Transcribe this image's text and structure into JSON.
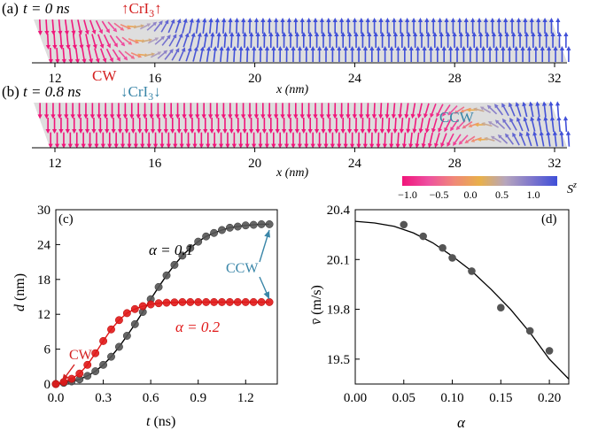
{
  "figure": {
    "colors": {
      "ann_red": "#d42020",
      "ann_teal": "#3a86a8",
      "band": "#dedede",
      "fit_line": "#000000"
    }
  },
  "chart_data": [
    {
      "type": "spin-texture",
      "panel_label": "(a)",
      "time_text": "t = 0 ns",
      "state_text": "↑CrI3↑",
      "state_color": "#d42020",
      "wall_label": "CW",
      "wall_label_color": "#d42020",
      "wall_center_nm": 14.9,
      "wall_width_nm": 1.1,
      "wall_chirality": "CW",
      "left_domain": "down (blue)",
      "x_ticks": [
        12,
        16,
        20,
        24,
        28,
        32
      ],
      "xlabel": "x (nm)",
      "xlim": [
        10.9,
        32.4
      ]
    },
    {
      "type": "spin-texture",
      "panel_label": "(b)",
      "time_text": "t = 0.8 ns",
      "state_text": "↓CrI3↓",
      "state_color": "#3a86a8",
      "wall_label": "CCW",
      "wall_label_color": "#3a86a8",
      "wall_center_nm": 28.8,
      "wall_width_nm": 1.1,
      "wall_chirality": "CCW",
      "left_domain": "down (blue)",
      "x_ticks": [
        12,
        16,
        20,
        24,
        28,
        32
      ],
      "xlabel": "x (nm)",
      "xlim": [
        10.9,
        32.4
      ],
      "colorbar": {
        "title": "Sz",
        "ticks": [
          "−1.0",
          "−0.5",
          "0.0",
          "0.5",
          "1.0"
        ],
        "range": [
          -1,
          1
        ],
        "colors": [
          "#f0157a",
          "#ee4fa0",
          "#f08878",
          "#e8b04a",
          "#b6a5bd",
          "#7f77cc",
          "#3f4fd8"
        ]
      }
    },
    {
      "type": "line",
      "panel_label": "(c)",
      "xlabel": "t (ns)",
      "ylabel": "d (nm)",
      "xlim": [
        0,
        1.4
      ],
      "ylim": [
        0,
        30
      ],
      "x_ticks": [
        "0.0",
        "0.3",
        "0.6",
        "0.9",
        "1.2"
      ],
      "y_ticks": [
        "0",
        "6",
        "12",
        "18",
        "24",
        "30"
      ],
      "series": [
        {
          "name": "α = 0.1",
          "color": "#555555",
          "x": [
            0,
            0.05,
            0.1,
            0.15,
            0.2,
            0.25,
            0.3,
            0.35,
            0.4,
            0.45,
            0.5,
            0.55,
            0.6,
            0.65,
            0.7,
            0.75,
            0.8,
            0.85,
            0.9,
            0.95,
            1.0,
            1.05,
            1.1,
            1.15,
            1.2,
            1.25,
            1.3,
            1.35
          ],
          "values": [
            0,
            0.2,
            0.45,
            0.8,
            1.4,
            2.2,
            3.3,
            4.7,
            6.4,
            8.3,
            10.3,
            12.4,
            14.6,
            16.7,
            18.7,
            20.5,
            22.1,
            23.4,
            24.5,
            25.4,
            26.0,
            26.5,
            26.9,
            27.1,
            27.3,
            27.4,
            27.5,
            27.5
          ]
        },
        {
          "name": "α = 0.2",
          "color": "#e01818",
          "x": [
            0,
            0.05,
            0.1,
            0.15,
            0.2,
            0.25,
            0.3,
            0.35,
            0.4,
            0.45,
            0.5,
            0.55,
            0.6,
            0.65,
            0.7,
            0.75,
            0.8,
            0.85,
            0.9,
            0.95,
            1.0,
            1.05,
            1.1,
            1.15,
            1.2,
            1.25,
            1.3,
            1.35
          ],
          "values": [
            0,
            0.35,
            0.9,
            1.8,
            3.3,
            5.3,
            7.4,
            9.4,
            11.0,
            12.2,
            12.9,
            13.4,
            13.7,
            13.9,
            14.0,
            14.05,
            14.1,
            14.1,
            14.1,
            14.1,
            14.1,
            14.1,
            14.1,
            14.1,
            14.1,
            14.1,
            14.1,
            14.1
          ]
        }
      ],
      "annotations": [
        {
          "text": "CW",
          "color": "#d42020"
        },
        {
          "text": "CCW",
          "color": "#3a86a8"
        }
      ]
    },
    {
      "type": "scatter",
      "panel_label": "(d)",
      "xlabel": "α",
      "ylabel": "v̄ (m/s)",
      "xlim": [
        0,
        0.22
      ],
      "ylim": [
        19.35,
        20.4
      ],
      "x_ticks": [
        "0.00",
        "0.05",
        "0.10",
        "0.15",
        "0.20"
      ],
      "y_ticks": [
        "19.5",
        "19.8",
        "20.1",
        "20.4"
      ],
      "points": {
        "x": [
          0.05,
          0.07,
          0.09,
          0.1,
          0.12,
          0.15,
          0.18,
          0.2
        ],
        "values": [
          20.31,
          20.24,
          20.17,
          20.11,
          20.03,
          19.81,
          19.67,
          19.55
        ],
        "color": "#555555"
      },
      "fit": {
        "x": [
          0,
          0.02,
          0.04,
          0.06,
          0.08,
          0.1,
          0.12,
          0.14,
          0.16,
          0.18,
          0.2,
          0.22
        ],
        "values": [
          20.33,
          20.32,
          20.3,
          20.26,
          20.2,
          20.12,
          20.03,
          19.92,
          19.8,
          19.66,
          19.5,
          19.38
        ],
        "color": "#000000"
      }
    }
  ]
}
